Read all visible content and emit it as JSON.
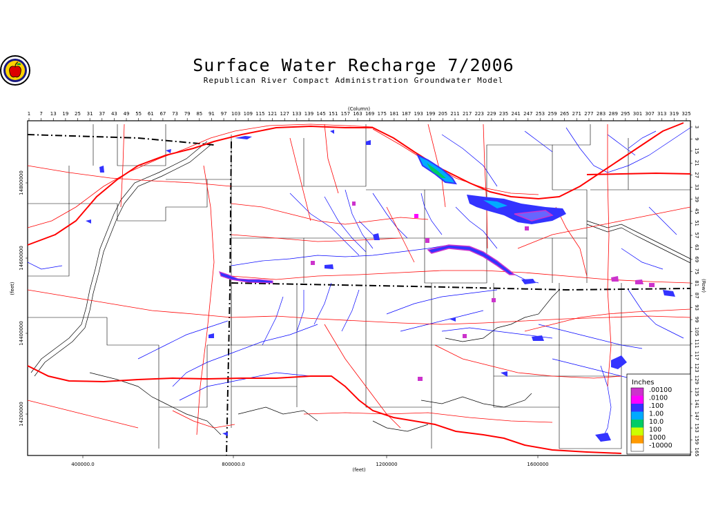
{
  "header": {
    "title": "Surface Water Recharge 7/2006",
    "subtitle": "Republican River Compact Administration Groundwater Model"
  },
  "axes": {
    "top_label": "(Column)",
    "top_ticks": [
      "1",
      "7",
      "13",
      "19",
      "25",
      "31",
      "37",
      "43",
      "49",
      "55",
      "61",
      "67",
      "73",
      "79",
      "85",
      "91",
      "97",
      "103",
      "109",
      "115",
      "121",
      "127",
      "133",
      "139",
      "145",
      "151",
      "157",
      "163",
      "169",
      "175",
      "181",
      "187",
      "193",
      "199",
      "205",
      "211",
      "217",
      "223",
      "229",
      "235",
      "241",
      "247",
      "253",
      "259",
      "265",
      "271",
      "277",
      "283",
      "289",
      "295",
      "301",
      "307",
      "313",
      "319",
      "325"
    ],
    "right_label": "(Row)",
    "right_ticks": [
      "3",
      "9",
      "15",
      "21",
      "27",
      "33",
      "39",
      "45",
      "51",
      "57",
      "63",
      "69",
      "75",
      "81",
      "87",
      "93",
      "99",
      "105",
      "111",
      "117",
      "123",
      "129",
      "135",
      "141",
      "147",
      "153",
      "159",
      "165"
    ],
    "bottom_label": "(feet)",
    "bottom_ticks": [
      "400000.0",
      "800000.0",
      "1200000",
      "1600000"
    ],
    "left_label": "(feet)",
    "left_ticks": [
      "14800000",
      "14600000",
      "14400000",
      "14200000"
    ]
  },
  "legend": {
    "title": "Inches",
    "items": [
      {
        "label": ".00100",
        "color": "#cc33cc"
      },
      {
        "label": ".0100",
        "color": "#ff00ff"
      },
      {
        "label": ".100",
        "color": "#3333ff"
      },
      {
        "label": "1.00",
        "color": "#00aaff"
      },
      {
        "label": "10.0",
        "color": "#00cc66"
      },
      {
        "label": "100",
        "color": "#ccff00"
      },
      {
        "label": "1000",
        "color": "#ff9900"
      },
      {
        "label": "-10000",
        "color": "#ffffff"
      }
    ]
  },
  "colors": {
    "roads": "#ff0000",
    "rivers": "#0000ff",
    "state_border": "#000000",
    "counties": "#000000"
  }
}
